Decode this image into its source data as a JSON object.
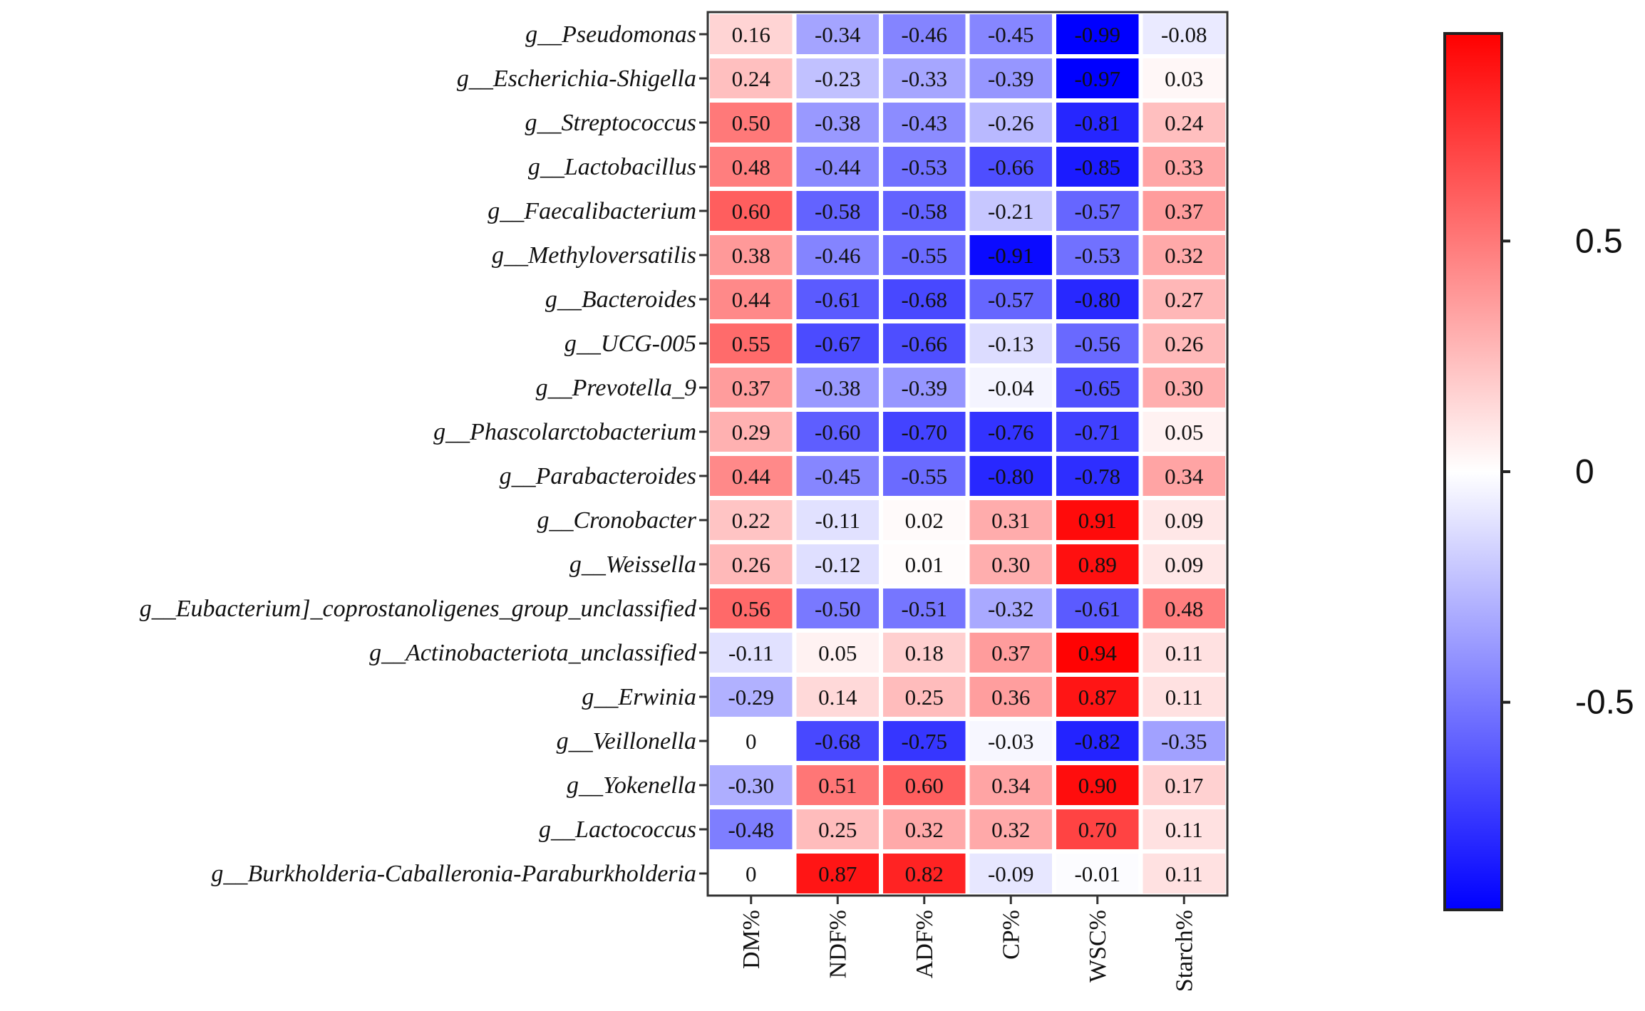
{
  "chart_data": {
    "type": "heatmap",
    "title": "",
    "xlabel": "",
    "ylabel": "",
    "rows": [
      {
        "prefix": "g__",
        "name": "Pseudomonas"
      },
      {
        "prefix": "g__",
        "name": "Escherichia-Shigella"
      },
      {
        "prefix": "g__",
        "name": "Streptococcus"
      },
      {
        "prefix": "g__",
        "name": "Lactobacillus"
      },
      {
        "prefix": "g__",
        "name": "Faecalibacterium"
      },
      {
        "prefix": "g__",
        "name": "Methyloversatilis"
      },
      {
        "prefix": "g__",
        "name": "Bacteroides"
      },
      {
        "prefix": "g__",
        "name": "UCG-005"
      },
      {
        "prefix": "g__",
        "name": "Prevotella_9"
      },
      {
        "prefix": "g__",
        "name": "Phascolarctobacterium"
      },
      {
        "prefix": "g__",
        "name": "Parabacteroides"
      },
      {
        "prefix": "g__",
        "name": "Cronobacter"
      },
      {
        "prefix": "g__",
        "name": "Weissella"
      },
      {
        "prefix": "g__",
        "name": "Eubacterium]_coprostanoligenes_group_unclassified"
      },
      {
        "prefix": "g__",
        "name": "Actinobacteriota_unclassified"
      },
      {
        "prefix": "g__",
        "name": "Erwinia"
      },
      {
        "prefix": "g__",
        "name": "Veillonella"
      },
      {
        "prefix": "g__",
        "name": "Yokenella"
      },
      {
        "prefix": "g__",
        "name": "Lactococcus"
      },
      {
        "prefix": "g__",
        "name": "Burkholderia-Caballeronia-Paraburkholderia"
      }
    ],
    "columns": [
      "DM%",
      "NDF%",
      "ADF%",
      "CP%",
      "WSC%",
      "Starch%"
    ],
    "values": [
      [
        0.16,
        -0.34,
        -0.46,
        -0.45,
        -0.99,
        -0.08
      ],
      [
        0.24,
        -0.23,
        -0.33,
        -0.39,
        -0.97,
        0.03
      ],
      [
        0.5,
        -0.38,
        -0.43,
        -0.26,
        -0.81,
        0.24
      ],
      [
        0.48,
        -0.44,
        -0.53,
        -0.66,
        -0.85,
        0.33
      ],
      [
        0.6,
        -0.58,
        -0.58,
        -0.21,
        -0.57,
        0.37
      ],
      [
        0.38,
        -0.46,
        -0.55,
        -0.91,
        -0.53,
        0.32
      ],
      [
        0.44,
        -0.61,
        -0.68,
        -0.57,
        -0.8,
        0.27
      ],
      [
        0.55,
        -0.67,
        -0.66,
        -0.13,
        -0.56,
        0.26
      ],
      [
        0.37,
        -0.38,
        -0.39,
        -0.04,
        -0.65,
        0.3
      ],
      [
        0.29,
        -0.6,
        -0.7,
        -0.76,
        -0.71,
        0.05
      ],
      [
        0.44,
        -0.45,
        -0.55,
        -0.8,
        -0.78,
        0.34
      ],
      [
        0.22,
        -0.11,
        0.02,
        0.31,
        0.91,
        0.09
      ],
      [
        0.26,
        -0.12,
        0.01,
        0.3,
        0.89,
        0.09
      ],
      [
        0.56,
        -0.5,
        -0.51,
        -0.32,
        -0.61,
        0.48
      ],
      [
        -0.11,
        0.05,
        0.18,
        0.37,
        0.94,
        0.11
      ],
      [
        -0.29,
        0.14,
        0.25,
        0.36,
        0.87,
        0.11
      ],
      [
        0,
        -0.68,
        -0.75,
        -0.03,
        -0.82,
        -0.35
      ],
      [
        -0.3,
        0.51,
        0.6,
        0.34,
        0.9,
        0.17
      ],
      [
        -0.48,
        0.25,
        0.32,
        0.32,
        0.7,
        0.11
      ],
      [
        0,
        0.87,
        0.82,
        -0.09,
        -0.01,
        0.11
      ]
    ],
    "value_labels": [
      [
        "0.16",
        "-0.34",
        "-0.46",
        "-0.45",
        "-0.99",
        "-0.08"
      ],
      [
        "0.24",
        "-0.23",
        "-0.33",
        "-0.39",
        "-0.97",
        "0.03"
      ],
      [
        "0.50",
        "-0.38",
        "-0.43",
        "-0.26",
        "-0.81",
        "0.24"
      ],
      [
        "0.48",
        "-0.44",
        "-0.53",
        "-0.66",
        "-0.85",
        "0.33"
      ],
      [
        "0.60",
        "-0.58",
        "-0.58",
        "-0.21",
        "-0.57",
        "0.37"
      ],
      [
        "0.38",
        "-0.46",
        "-0.55",
        "-0.91",
        "-0.53",
        "0.32"
      ],
      [
        "0.44",
        "-0.61",
        "-0.68",
        "-0.57",
        "-0.80",
        "0.27"
      ],
      [
        "0.55",
        "-0.67",
        "-0.66",
        "-0.13",
        "-0.56",
        "0.26"
      ],
      [
        "0.37",
        "-0.38",
        "-0.39",
        "-0.04",
        "-0.65",
        "0.30"
      ],
      [
        "0.29",
        "-0.60",
        "-0.70",
        "-0.76",
        "-0.71",
        "0.05"
      ],
      [
        "0.44",
        "-0.45",
        "-0.55",
        "-0.80",
        "-0.78",
        "0.34"
      ],
      [
        "0.22",
        "-0.11",
        "0.02",
        "0.31",
        "0.91",
        "0.09"
      ],
      [
        "0.26",
        "-0.12",
        "0.01",
        "0.30",
        "0.89",
        "0.09"
      ],
      [
        "0.56",
        "-0.50",
        "-0.51",
        "-0.32",
        "-0.61",
        "0.48"
      ],
      [
        "-0.11",
        "0.05",
        "0.18",
        "0.37",
        "0.94",
        "0.11"
      ],
      [
        "-0.29",
        "0.14",
        "0.25",
        "0.36",
        "0.87",
        "0.11"
      ],
      [
        "0",
        "-0.68",
        "-0.75",
        "-0.03",
        "-0.82",
        "-0.35"
      ],
      [
        "-0.30",
        "0.51",
        "0.60",
        "0.34",
        "0.90",
        "0.17"
      ],
      [
        "-0.48",
        "0.25",
        "0.32",
        "0.32",
        "0.70",
        "0.11"
      ],
      [
        "0",
        "0.87",
        "0.82",
        "-0.09",
        "-0.01",
        "0.11"
      ]
    ],
    "colorbar": {
      "range": [
        -0.95,
        0.95
      ],
      "ticks": [
        0.5,
        0,
        -0.5
      ],
      "tick_labels": [
        "0.5",
        "0",
        "-0.5"
      ],
      "colors": {
        "low": "#0000ff",
        "mid": "#ffffff",
        "high": "#ff0000"
      }
    },
    "grid": false,
    "legend": "colorbar-right"
  }
}
